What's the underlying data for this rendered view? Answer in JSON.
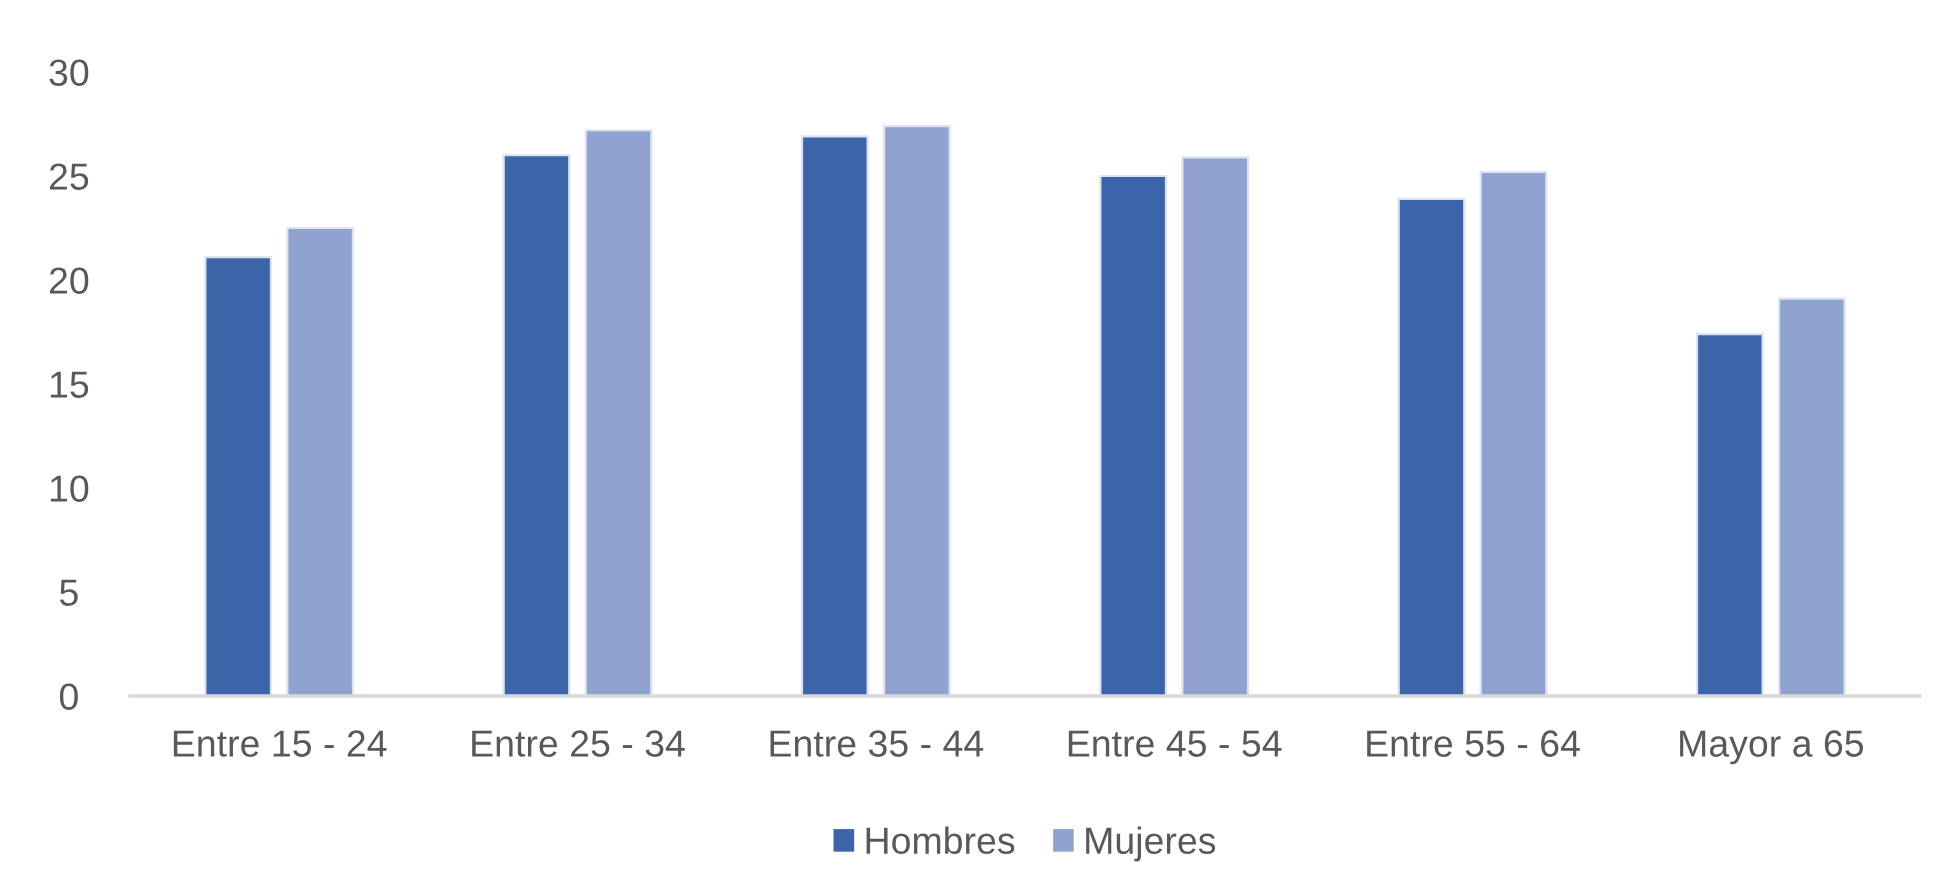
{
  "chart_data": {
    "type": "bar",
    "categories": [
      "Entre 15 - 24",
      "Entre 25 - 34",
      "Entre 35 - 44",
      "Entre 45 - 54",
      "Entre 55 - 64",
      "Mayor a 65"
    ],
    "series": [
      {
        "name": "Hombres",
        "color": "#3c64a8",
        "values": [
          21.1,
          26.0,
          26.9,
          25.0,
          23.9,
          17.4
        ]
      },
      {
        "name": "Mujeres",
        "color": "#8fa2d0",
        "values": [
          22.5,
          27.2,
          27.4,
          25.9,
          25.2,
          19.1
        ]
      }
    ],
    "ylim": [
      0,
      30
    ],
    "yticks": [
      0,
      5,
      10,
      15,
      20,
      25,
      30
    ],
    "grid": false,
    "legend": "bottom"
  }
}
